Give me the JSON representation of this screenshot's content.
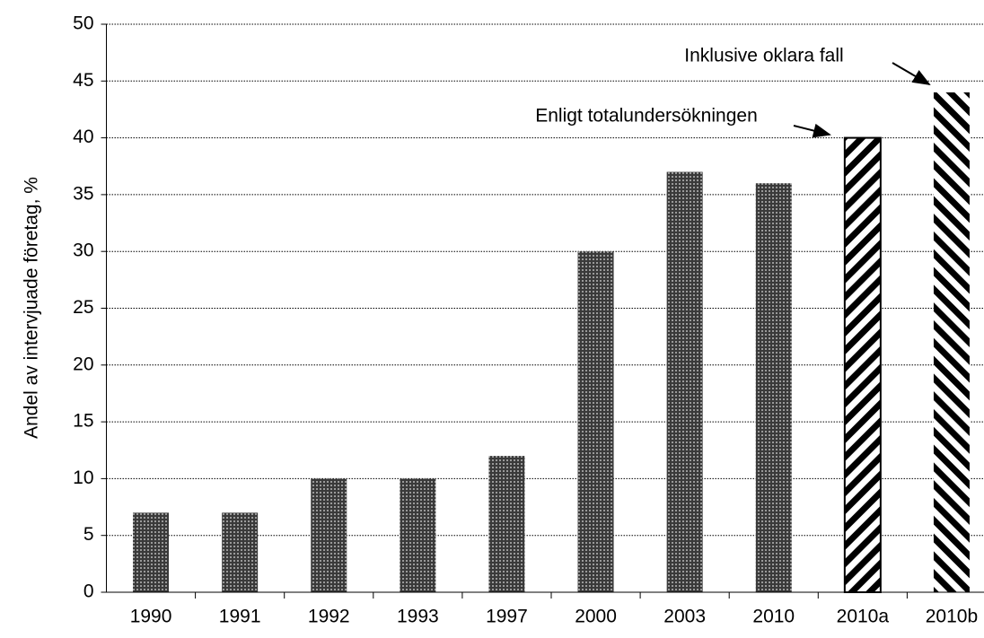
{
  "chart_data": {
    "type": "bar",
    "ylabel": "Andel av intervjuade företag, %",
    "categories": [
      "1990",
      "1991",
      "1992",
      "1993",
      "1997",
      "2000",
      "2003",
      "2010",
      "2010a",
      "2010b"
    ],
    "values": [
      7,
      7,
      10,
      10,
      12,
      30,
      37,
      36,
      40,
      44
    ],
    "color": "#555555",
    "patterns": [
      "dots",
      "dots",
      "dots",
      "dots",
      "dots",
      "dots",
      "dots",
      "dots",
      "hatch-back",
      "hatch-forward"
    ],
    "ylim": [
      0,
      50
    ],
    "yticks": [
      0,
      5,
      10,
      15,
      20,
      25,
      30,
      35,
      40,
      45,
      50
    ],
    "grid": true,
    "annotations": [
      "Enligt totalundersökningen",
      "Inklusive oklara fall"
    ]
  }
}
